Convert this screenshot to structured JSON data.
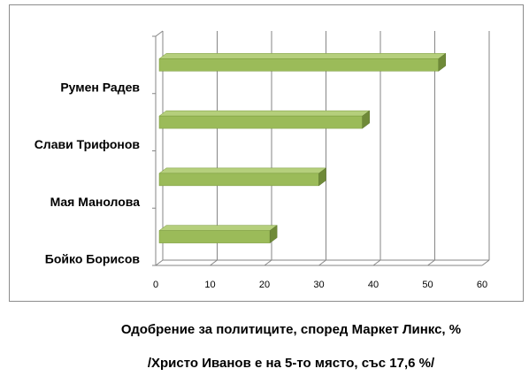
{
  "chart_data": {
    "type": "bar",
    "orientation": "horizontal",
    "style": "3d",
    "categories": [
      "Румен Радев",
      "Слави Трифонов",
      "Мая Манолова",
      "Бойко Борисов"
    ],
    "values": [
      52,
      38,
      30,
      21
    ],
    "xlim": [
      0,
      60
    ],
    "xticks": [
      "0",
      "10",
      "20",
      "30",
      "40",
      "50",
      "60"
    ],
    "grid": true,
    "legend": "none",
    "bar_color": "#9bbb59"
  },
  "captions": {
    "line1": "Одобрение за политиците, според Маркет Линкс, %",
    "line2": "/Христо Иванов е на 5-то място, със 17,6 %/"
  }
}
